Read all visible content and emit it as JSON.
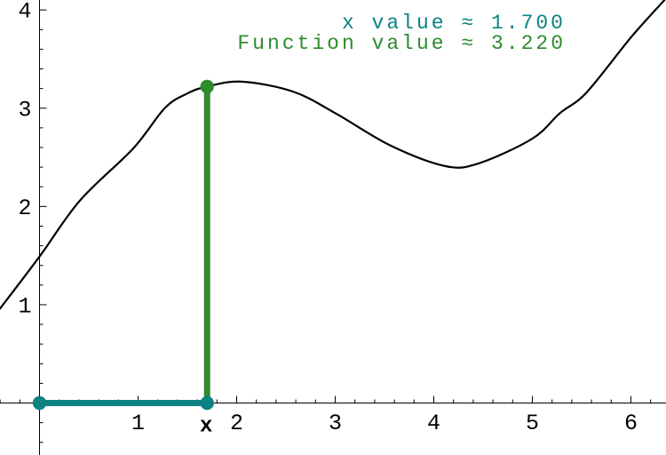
{
  "chart_data": {
    "type": "line",
    "title": "",
    "xlabel": "",
    "ylabel": "",
    "grid": false,
    "background": "#ffffff",
    "axis_color": "#000000",
    "x_range": [
      -0.401,
      6.356
    ],
    "y_range": [
      -0.529,
      4.101
    ],
    "x_major_ticks": [
      1,
      2,
      3,
      4,
      5,
      6
    ],
    "x_major_tick_labels": [
      "1",
      "2",
      "3",
      "4",
      "5",
      "6"
    ],
    "y_major_ticks": [
      1,
      2,
      3,
      4
    ],
    "y_major_tick_labels": [
      "1",
      "2",
      "3",
      "4"
    ],
    "minor_tick_step": 0.2,
    "curve": {
      "name": "function-curve",
      "color": "#000000",
      "stroke_width": 2.2,
      "points": [
        [
          -0.401,
          0.96
        ],
        [
          0.0,
          1.49
        ],
        [
          0.41,
          2.06
        ],
        [
          0.95,
          2.59
        ],
        [
          1.27,
          3.0
        ],
        [
          1.5,
          3.15
        ],
        [
          1.7,
          3.22
        ],
        [
          2.05,
          3.27
        ],
        [
          2.57,
          3.17
        ],
        [
          3.0,
          2.95
        ],
        [
          3.56,
          2.62
        ],
        [
          4.12,
          2.41
        ],
        [
          4.46,
          2.44
        ],
        [
          5.0,
          2.69
        ],
        [
          5.28,
          2.95
        ],
        [
          5.55,
          3.16
        ],
        [
          6.0,
          3.72
        ],
        [
          6.34,
          4.1
        ]
      ]
    },
    "marker": {
      "x": 1.7,
      "y": 3.22,
      "x_axis_label": "x",
      "x_segment_color": "#0c8282",
      "y_segment_color": "#2e8b2e",
      "segment_width": 7,
      "dot_radius": 7.7
    },
    "annotations": [
      {
        "text": "x value ≈ 1.700",
        "color": "#0c8282"
      },
      {
        "text": "Function value ≈ 3.220",
        "color": "#2e8b2e"
      }
    ]
  }
}
